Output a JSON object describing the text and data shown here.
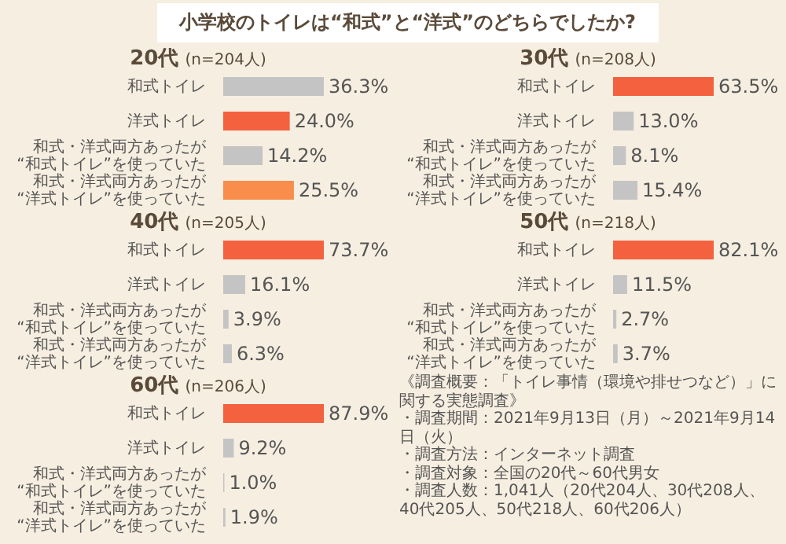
{
  "chart_data": [
    {
      "type": "other",
      "title": "小学校のトイレは“和式”と“洋式”のどちらでしたか?"
    },
    {
      "type": "bar",
      "orientation": "horizontal",
      "title": "20代",
      "subtitle": "(n=204人)",
      "categories": [
        "和式トイレ",
        "洋式トイレ",
        "和式・洋式両方あったが\n“和式トイレ”を使っていた",
        "和式・洋式両方あったが\n“洋式トイレ”を使っていた"
      ],
      "values": [
        36.3,
        24.0,
        14.2,
        25.5
      ],
      "colors": [
        "#c4c4c4",
        "#f4613f",
        "#c4c4c4",
        "#f98d4c"
      ],
      "value_labels": [
        "36.3%",
        "24.0%",
        "14.2%",
        "25.5%"
      ],
      "tick_labels": "y"
    },
    {
      "type": "bar",
      "orientation": "horizontal",
      "title": "30代",
      "subtitle": "(n=208人)",
      "categories": [
        "和式トイレ",
        "洋式トイレ",
        "和式・洋式両方あったが\n“和式トイレ”を使っていた",
        "和式・洋式両方あったが\n“洋式トイレ”を使っていた"
      ],
      "values": [
        63.5,
        13.0,
        8.1,
        15.4
      ],
      "colors": [
        "#f4613f",
        "#c4c4c4",
        "#c4c4c4",
        "#c4c4c4"
      ],
      "value_labels": [
        "63.5%",
        "13.0%",
        "8.1%",
        "15.4%"
      ],
      "tick_labels": "y"
    },
    {
      "type": "bar",
      "orientation": "horizontal",
      "title": "40代",
      "subtitle": "(n=205人)",
      "categories": [
        "和式トイレ",
        "洋式トイレ",
        "和式・洋式両方あったが\n“和式トイレ”を使っていた",
        "和式・洋式両方あったが\n“洋式トイレ”を使っていた"
      ],
      "values": [
        73.7,
        16.1,
        3.9,
        6.3
      ],
      "colors": [
        "#f4613f",
        "#c4c4c4",
        "#c4c4c4",
        "#c4c4c4"
      ],
      "value_labels": [
        "73.7%",
        "16.1%",
        "3.9%",
        "6.3%"
      ],
      "tick_labels": "y"
    },
    {
      "type": "bar",
      "orientation": "horizontal",
      "title": "50代",
      "subtitle": "(n=218人)",
      "categories": [
        "和式トイレ",
        "洋式トイレ",
        "和式・洋式両方あったが\n“和式トイレ”を使っていた",
        "和式・洋式両方あったが\n“洋式トイレ”を使っていた"
      ],
      "values": [
        82.1,
        11.5,
        2.7,
        3.7
      ],
      "colors": [
        "#f4613f",
        "#c4c4c4",
        "#c4c4c4",
        "#c4c4c4"
      ],
      "value_labels": [
        "82.1%",
        "11.5%",
        "2.7%",
        "3.7%"
      ],
      "tick_labels": "y"
    },
    {
      "type": "bar",
      "orientation": "horizontal",
      "title": "60代",
      "subtitle": "(n=206人)",
      "categories": [
        "和式トイレ",
        "洋式トイレ",
        "和式・洋式両方あったが\n“和式トイレ”を使っていた",
        "和式・洋式両方あったが\n“洋式トイレ”を使っていた"
      ],
      "values": [
        87.9,
        9.2,
        1.0,
        1.9
      ],
      "colors": [
        "#f4613f",
        "#c4c4c4",
        "#c4c4c4",
        "#c4c4c4"
      ],
      "value_labels": [
        "87.9%",
        "9.2%",
        "1.0%",
        "1.9%"
      ],
      "tick_labels": "y"
    },
    {
      "type": "other",
      "annotations": [
        "《調査概要：「トイレ事情（環境や排せつなど）」に関する実態調査》",
        "・調査期間：2021年9月13日（月）～2021年9月14日（火）",
        "・調査方法：インターネット調査",
        "・調査対象：全国の20代～60代男女",
        "・調査人数：1,041人（20代204人、30代208人、40代205人、50代218人、60代206人）"
      ]
    }
  ]
}
